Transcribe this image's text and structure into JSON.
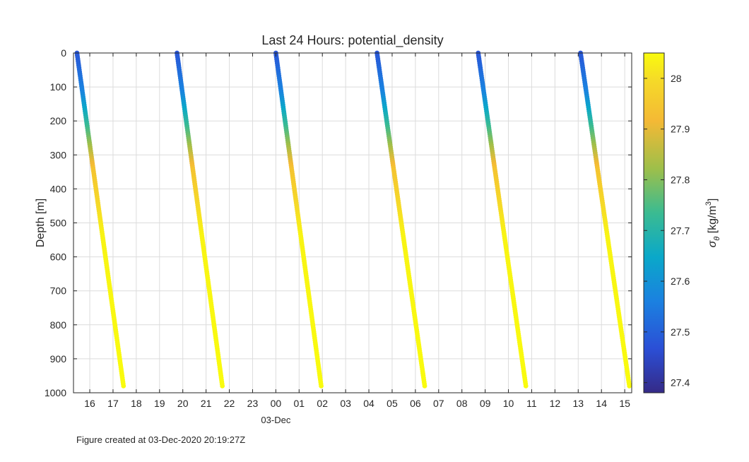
{
  "chart_data": {
    "type": "scatter",
    "title": "Last 24 Hours: potential_density",
    "ylabel": "Depth [m]",
    "xlabel": "03-Dec",
    "x_tick_labels": [
      "16",
      "17",
      "18",
      "19",
      "20",
      "21",
      "22",
      "23",
      "00",
      "01",
      "02",
      "03",
      "04",
      "05",
      "06",
      "07",
      "08",
      "09",
      "10",
      "11",
      "12",
      "13",
      "14",
      "15"
    ],
    "x_range_hours": [
      -8.7,
      15.3
    ],
    "x_label_anchor_hour": 0,
    "y_ticks": [
      0,
      100,
      200,
      300,
      400,
      500,
      600,
      700,
      800,
      900,
      1000
    ],
    "ylim": [
      0,
      1000
    ],
    "y_reversed": true,
    "grid": true,
    "colorbar": {
      "label": "σθ [kg/m3]",
      "ticks": [
        27.4,
        27.5,
        27.6,
        27.7,
        27.8,
        27.9,
        28
      ],
      "clim": [
        27.38,
        28.05
      ],
      "colormap": "parula"
    },
    "series": [
      {
        "profile": 1,
        "start_hour": -8.55,
        "end_hour": -6.55,
        "depth": [
          0,
          980
        ],
        "sigma_theta": [
          27.45,
          28.05
        ]
      },
      {
        "profile": 2,
        "start_hour": -4.25,
        "end_hour": -2.3,
        "depth": [
          0,
          980
        ],
        "sigma_theta": [
          27.45,
          28.05
        ]
      },
      {
        "profile": 3,
        "start_hour": 0.0,
        "end_hour": 1.95,
        "depth": [
          0,
          980
        ],
        "sigma_theta": [
          27.45,
          28.05
        ]
      },
      {
        "profile": 4,
        "start_hour": 4.35,
        "end_hour": 6.4,
        "depth": [
          0,
          980
        ],
        "sigma_theta": [
          27.45,
          28.05
        ]
      },
      {
        "profile": 5,
        "start_hour": 8.7,
        "end_hour": 10.75,
        "depth": [
          0,
          980
        ],
        "sigma_theta": [
          27.45,
          28.05
        ]
      },
      {
        "profile": 6,
        "start_hour": 13.1,
        "end_hour": 15.2,
        "depth": [
          0,
          980
        ],
        "sigma_theta": [
          27.45,
          28.05
        ]
      }
    ]
  },
  "footer": "Figure created at 03-Dec-2020 20:19:27Z"
}
